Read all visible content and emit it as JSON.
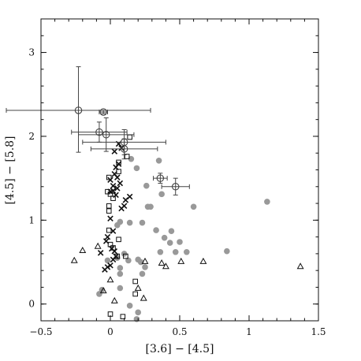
{
  "chart_data": {
    "type": "scatter",
    "xlabel": "[3.6] − [4.5]",
    "ylabel": "[4.5] − [5.8]",
    "xlim": [
      -0.5,
      1.5
    ],
    "ylim": [
      -0.2,
      3.4
    ],
    "xticks": [
      -0.5,
      0,
      0.5,
      1,
      1.5
    ],
    "xtick_labels": [
      "−0.5",
      "0",
      "0.5",
      "1",
      "1.5"
    ],
    "yticks": [
      0,
      1,
      2,
      3
    ],
    "ytick_labels": [
      "0",
      "1",
      "2",
      "3"
    ],
    "grid": false,
    "series": [
      {
        "marker": "open-circle-errorbar",
        "color": "#444444",
        "points": [
          {
            "x": -0.23,
            "y": 2.31,
            "xerr": [
              0.52,
              0.52
            ],
            "yerr": [
              0.5,
              0.52
            ]
          },
          {
            "x": -0.05,
            "y": 2.29,
            "xerr": [
              0.03,
              0.03
            ],
            "yerr": [
              0.02,
              0.02
            ]
          },
          {
            "x": -0.08,
            "y": 2.05,
            "xerr": [
              0.2,
              0.2
            ],
            "yerr": [
              0.12,
              0.12
            ]
          },
          {
            "x": -0.03,
            "y": 2.02,
            "xerr": [
              0.2,
              0.2
            ],
            "yerr": [
              0.2,
              0.2
            ]
          },
          {
            "x": 0.1,
            "y": 1.93,
            "xerr": [
              0.3,
              0.3
            ],
            "yerr": [
              0.15,
              0.15
            ]
          },
          {
            "x": 0.1,
            "y": 1.85,
            "xerr": [
              0.24,
              0.24
            ],
            "yerr": [
              0.12,
              0.12
            ]
          },
          {
            "x": 0.36,
            "y": 1.5,
            "xerr": [
              0.05,
              0.05
            ],
            "yerr": [
              0.06,
              0.06
            ]
          },
          {
            "x": 0.47,
            "y": 1.4,
            "xerr": [
              0.1,
              0.1
            ],
            "yerr": [
              0.1,
              0.1
            ]
          }
        ]
      },
      {
        "marker": "cross",
        "color": "#111111",
        "points": [
          {
            "x": 0.06,
            "y": 1.91
          },
          {
            "x": 0.08,
            "y": 1.86
          },
          {
            "x": 0.03,
            "y": 1.82
          },
          {
            "x": 0.06,
            "y": 1.67
          },
          {
            "x": 0.04,
            "y": 1.63
          },
          {
            "x": 0.03,
            "y": 1.55
          },
          {
            "x": 0.05,
            "y": 1.51
          },
          {
            "x": 0.0,
            "y": 1.48
          },
          {
            "x": 0.07,
            "y": 1.44
          },
          {
            "x": 0.02,
            "y": 1.41
          },
          {
            "x": 0.05,
            "y": 1.38
          },
          {
            "x": 0.02,
            "y": 1.35
          },
          {
            "x": 0.0,
            "y": 1.34
          },
          {
            "x": 0.04,
            "y": 1.3
          },
          {
            "x": 0.14,
            "y": 1.28
          },
          {
            "x": 0.11,
            "y": 1.24
          },
          {
            "x": 0.1,
            "y": 1.17
          },
          {
            "x": 0.08,
            "y": 1.14
          },
          {
            "x": 0.0,
            "y": 1.02
          },
          {
            "x": 0.02,
            "y": 0.87
          },
          {
            "x": -0.02,
            "y": 0.8
          },
          {
            "x": -0.03,
            "y": 0.75
          },
          {
            "x": 0.01,
            "y": 0.66
          },
          {
            "x": 0.03,
            "y": 0.63
          },
          {
            "x": -0.07,
            "y": 0.61
          },
          {
            "x": 0.04,
            "y": 0.57
          },
          {
            "x": 0.02,
            "y": 0.53
          },
          {
            "x": 0.0,
            "y": 0.46
          },
          {
            "x": -0.02,
            "y": 0.44
          },
          {
            "x": -0.04,
            "y": 0.41
          }
        ]
      },
      {
        "marker": "open-square",
        "color": "#111111",
        "points": [
          {
            "x": 0.14,
            "y": 1.99
          },
          {
            "x": 0.12,
            "y": 1.76
          },
          {
            "x": 0.06,
            "y": 1.69
          },
          {
            "x": 0.06,
            "y": 1.58
          },
          {
            "x": -0.01,
            "y": 1.51
          },
          {
            "x": -0.02,
            "y": 1.34
          },
          {
            "x": 0.0,
            "y": 1.31
          },
          {
            "x": 0.02,
            "y": 1.26
          },
          {
            "x": -0.01,
            "y": 1.17
          },
          {
            "x": -0.01,
            "y": 1.11
          },
          {
            "x": -0.01,
            "y": 0.88
          },
          {
            "x": 0.06,
            "y": 0.77
          },
          {
            "x": 0.0,
            "y": 0.71
          },
          {
            "x": 0.02,
            "y": 0.67
          },
          {
            "x": 0.05,
            "y": 0.57
          },
          {
            "x": 0.11,
            "y": 0.57
          },
          {
            "x": 0.18,
            "y": 0.27
          },
          {
            "x": 0.18,
            "y": 0.12
          },
          {
            "x": 0.0,
            "y": -0.12
          },
          {
            "x": 0.09,
            "y": -0.15
          }
        ]
      },
      {
        "marker": "open-triangle",
        "color": "#111111",
        "points": [
          {
            "x": -0.26,
            "y": 0.52
          },
          {
            "x": -0.2,
            "y": 0.64
          },
          {
            "x": -0.09,
            "y": 0.69
          },
          {
            "x": -0.05,
            "y": 0.16
          },
          {
            "x": 0.0,
            "y": 0.29
          },
          {
            "x": 0.03,
            "y": 0.04
          },
          {
            "x": 0.2,
            "y": 0.19
          },
          {
            "x": 0.24,
            "y": 0.07
          },
          {
            "x": 0.25,
            "y": 0.51
          },
          {
            "x": 0.37,
            "y": 0.49
          },
          {
            "x": 0.4,
            "y": 0.45
          },
          {
            "x": 0.51,
            "y": 0.51
          },
          {
            "x": 0.67,
            "y": 0.51
          },
          {
            "x": 1.37,
            "y": 0.45
          }
        ]
      },
      {
        "marker": "filled-circle",
        "color": "#999999",
        "points": [
          {
            "x": 0.15,
            "y": 1.73
          },
          {
            "x": 0.19,
            "y": 1.62
          },
          {
            "x": 0.26,
            "y": 1.41
          },
          {
            "x": 0.27,
            "y": 1.16
          },
          {
            "x": 0.29,
            "y": 1.16
          },
          {
            "x": 0.37,
            "y": 1.31
          },
          {
            "x": 0.35,
            "y": 1.71
          },
          {
            "x": 0.6,
            "y": 1.16
          },
          {
            "x": 1.13,
            "y": 1.22
          },
          {
            "x": 0.07,
            "y": 0.98
          },
          {
            "x": 0.05,
            "y": 0.94
          },
          {
            "x": 0.14,
            "y": 0.97
          },
          {
            "x": 0.23,
            "y": 0.97
          },
          {
            "x": 0.33,
            "y": 0.88
          },
          {
            "x": 0.44,
            "y": 0.87
          },
          {
            "x": 0.39,
            "y": 0.79
          },
          {
            "x": 0.5,
            "y": 0.74
          },
          {
            "x": 0.43,
            "y": 0.73
          },
          {
            "x": 0.36,
            "y": 0.62
          },
          {
            "x": 0.47,
            "y": 0.62
          },
          {
            "x": 0.55,
            "y": 0.62
          },
          {
            "x": 0.84,
            "y": 0.63
          },
          {
            "x": 0.1,
            "y": 0.6
          },
          {
            "x": 0.13,
            "y": 0.52
          },
          {
            "x": 0.2,
            "y": 0.53
          },
          {
            "x": 0.22,
            "y": 0.5
          },
          {
            "x": 0.25,
            "y": 0.44
          },
          {
            "x": 0.23,
            "y": 0.36
          },
          {
            "x": 0.07,
            "y": 0.43
          },
          {
            "x": 0.07,
            "y": 0.36
          },
          {
            "x": -0.02,
            "y": 0.52
          },
          {
            "x": 0.05,
            "y": 0.55
          },
          {
            "x": -0.06,
            "y": 0.17
          },
          {
            "x": 0.07,
            "y": 0.19
          },
          {
            "x": -0.08,
            "y": 0.12
          },
          {
            "x": 0.14,
            "y": -0.02
          },
          {
            "x": 0.2,
            "y": -0.1
          },
          {
            "x": 0.19,
            "y": -0.18
          }
        ]
      }
    ]
  }
}
